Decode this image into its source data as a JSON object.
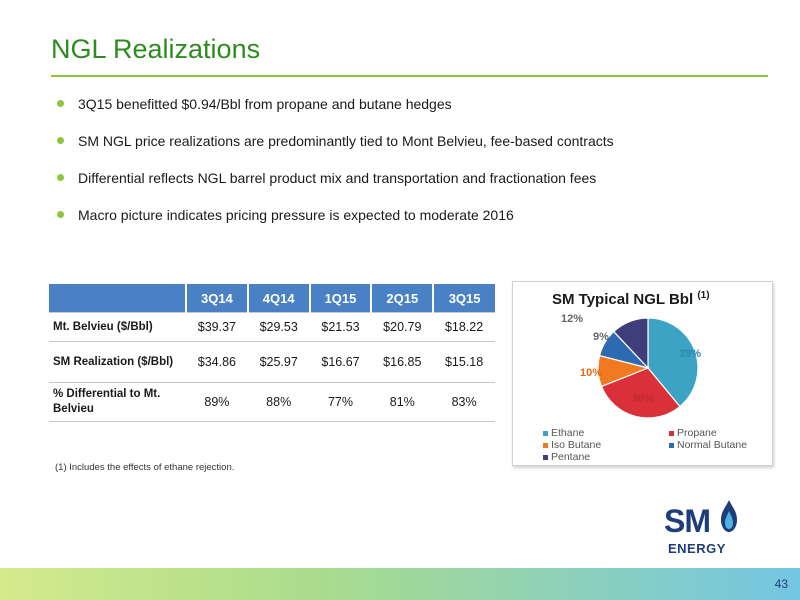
{
  "slide": {
    "title": "NGL Realizations",
    "bullets": [
      "3Q15 benefitted $0.94/Bbl from propane and butane hedges",
      "SM NGL price realizations are predominantly tied to Mont Belvieu, fee-based contracts",
      "Differential reflects NGL barrel product mix and transportation and fractionation fees",
      "Macro picture indicates pricing pressure is expected to moderate 2016"
    ],
    "footnote": "(1)    Includes the effects of ethane rejection.",
    "page_number": "43"
  },
  "table": {
    "columns": [
      "3Q14",
      "4Q14",
      "1Q15",
      "2Q15",
      "3Q15"
    ],
    "rows": [
      {
        "label": "Mt. Belvieu ($/Bbl)",
        "values": [
          "$39.37",
          "$29.53",
          "$21.53",
          "$20.79",
          "$18.22"
        ]
      },
      {
        "label": "SM Realization ($/Bbl)",
        "values": [
          "$34.86",
          "$25.97",
          "$16.67",
          "$16.85",
          "$15.18"
        ]
      },
      {
        "label": "% Differential to Mt. Belvieu",
        "values": [
          "89%",
          "88%",
          "77%",
          "81%",
          "83%"
        ]
      }
    ]
  },
  "chart_data": {
    "type": "pie",
    "title": "SM Typical NGL Bbl",
    "title_note": "(1)",
    "categories": [
      "Ethane",
      "Propane",
      "Iso Butane",
      "Normal Butane",
      "Pentane"
    ],
    "values": [
      39,
      30,
      10,
      9,
      12
    ],
    "labels": [
      "39%",
      "30%",
      "10%",
      "9%",
      "12%"
    ],
    "colors": [
      "#3ca3c5",
      "#d9303a",
      "#f07a1f",
      "#2e6ab0",
      "#3e3f7a"
    ],
    "legend_placement": "bottom"
  },
  "logo": {
    "top": "SM",
    "bottom": "ENERGY"
  }
}
